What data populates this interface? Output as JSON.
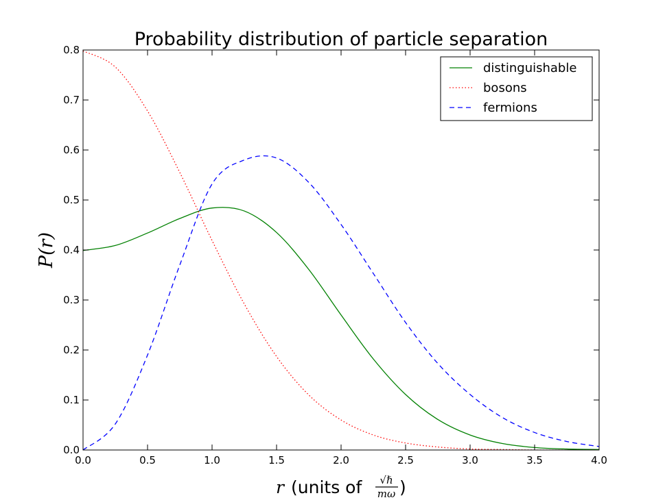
{
  "chart_data": {
    "type": "line",
    "title": "Probability distribution of particle separation",
    "xlabel": {
      "variable": "r",
      "text": "(units of ",
      "frac_numerator": "√ℏ",
      "frac_denominator": "mω",
      "close": ")"
    },
    "ylabel": "P(r)",
    "xlim": [
      0.0,
      4.0
    ],
    "ylim": [
      0.0,
      0.8
    ],
    "xticks": [
      "0.0",
      "0.5",
      "1.0",
      "1.5",
      "2.0",
      "2.5",
      "3.0",
      "3.5",
      "4.0"
    ],
    "yticks": [
      "0.0",
      "0.1",
      "0.2",
      "0.3",
      "0.4",
      "0.5",
      "0.6",
      "0.7",
      "0.8"
    ],
    "grid": false,
    "legend_position": "top-right",
    "x": [
      0.0,
      0.25,
      0.5,
      0.75,
      1.0,
      1.25,
      1.5,
      1.75,
      2.0,
      2.25,
      2.5,
      2.75,
      3.0,
      3.25,
      3.5,
      3.75,
      4.0
    ],
    "series": [
      {
        "name": "distinguishable",
        "color": "#008000",
        "style": "solid",
        "values": [
          0.399,
          0.409,
          0.434,
          0.463,
          0.484,
          0.478,
          0.435,
          0.361,
          0.27,
          0.182,
          0.111,
          0.061,
          0.03,
          0.013,
          0.005,
          0.002,
          0.001
        ]
      },
      {
        "name": "bosons",
        "color": "#ff0000",
        "style": "dotted",
        "values": [
          0.798,
          0.766,
          0.678,
          0.555,
          0.419,
          0.292,
          0.187,
          0.11,
          0.06,
          0.03,
          0.014,
          0.006,
          0.002,
          0.001,
          0.0,
          0.0,
          0.0
        ]
      },
      {
        "name": "fermions",
        "color": "#0000ff",
        "style": "dashed",
        "values": [
          0.0,
          0.052,
          0.19,
          0.37,
          0.532,
          0.58,
          0.584,
          0.535,
          0.451,
          0.353,
          0.255,
          0.173,
          0.111,
          0.065,
          0.035,
          0.017,
          0.007
        ]
      }
    ]
  }
}
